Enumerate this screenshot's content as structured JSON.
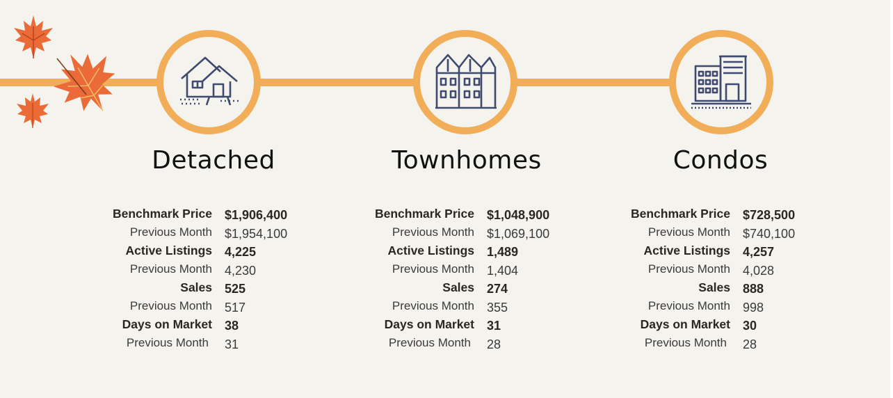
{
  "colors": {
    "accent": "#f2ad58",
    "icon": "#3f4b6e",
    "background": "#f4f3ee",
    "leaf": "#ea6b38"
  },
  "categories": [
    {
      "title": "Detached",
      "icon": "house-icon",
      "rows": [
        {
          "label": "Benchmark Price",
          "value": "$1,906,400"
        },
        {
          "label": "Previous Month",
          "value": "$1,954,100"
        },
        {
          "label": "Active Listings",
          "value": "4,225"
        },
        {
          "label": "Previous Month",
          "value": "4,230"
        },
        {
          "label": "Sales",
          "value": "525"
        },
        {
          "label": "Previous Month",
          "value": "517"
        },
        {
          "label": "Days on Market",
          "value": "38"
        },
        {
          "label": "Previous Month",
          "value": "31"
        }
      ]
    },
    {
      "title": "Townhomes",
      "icon": "townhouse-icon",
      "rows": [
        {
          "label": "Benchmark Price",
          "value": "$1,048,900"
        },
        {
          "label": "Previous Month",
          "value": "$1,069,100"
        },
        {
          "label": "Active Listings",
          "value": "1,489"
        },
        {
          "label": "Previous Month",
          "value": "1,404"
        },
        {
          "label": "Sales",
          "value": "274"
        },
        {
          "label": "Previous Month",
          "value": "355"
        },
        {
          "label": "Days on Market",
          "value": "31"
        },
        {
          "label": "Previous Month",
          "value": "28"
        }
      ]
    },
    {
      "title": "Condos",
      "icon": "condo-building-icon",
      "rows": [
        {
          "label": "Benchmark Price",
          "value": "$728,500"
        },
        {
          "label": "Previous Month",
          "value": "$740,100"
        },
        {
          "label": "Active Listings",
          "value": "4,257"
        },
        {
          "label": "Previous Month",
          "value": "4,028"
        },
        {
          "label": "Sales",
          "value": "888"
        },
        {
          "label": "Previous Month",
          "value": "998"
        },
        {
          "label": "Days on Market",
          "value": "30"
        },
        {
          "label": "Previous Month",
          "value": "28"
        }
      ]
    }
  ]
}
